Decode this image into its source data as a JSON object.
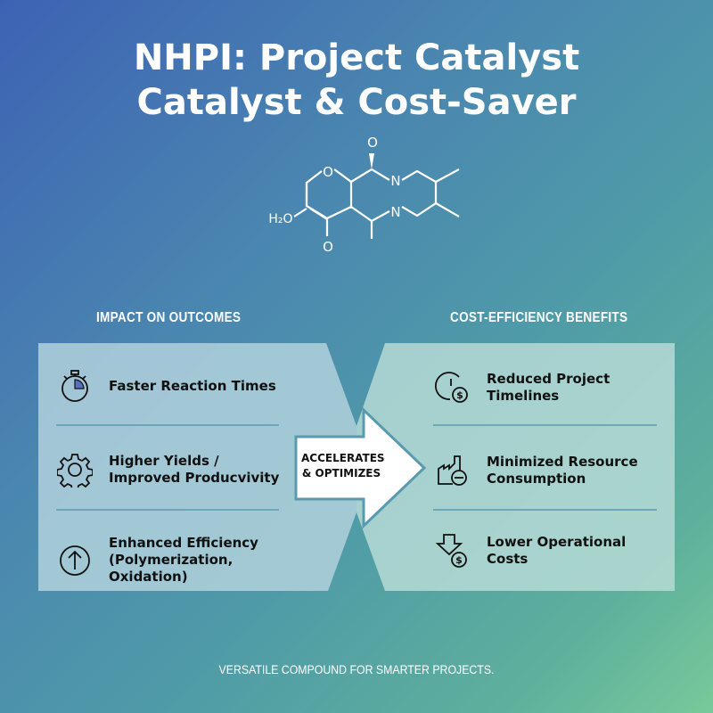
{
  "title": {
    "line1": "NHPI: Project Catalyst",
    "line2": "Catalyst & Cost-Saver"
  },
  "molecule": {
    "labels": {
      "o_top": "O",
      "o_ring": "O",
      "n1": "N",
      "n2": "N",
      "h2o": "H₂O",
      "o_bottom": "O"
    }
  },
  "left": {
    "heading": "IMPACT ON OUTCOMES",
    "items": [
      {
        "icon": "stopwatch-icon",
        "text": "Faster Reaction Times"
      },
      {
        "icon": "gear-icon",
        "text": "Higher Yields / Improved Producvivity"
      },
      {
        "icon": "arrow-up-circle-icon",
        "text": "Enhanced Efficiency (Polymerization, Oxidation)"
      }
    ]
  },
  "arrow": {
    "line1": "ACCELERATES",
    "line2": "& OPTIMIZES"
  },
  "right": {
    "heading": "COST-EFFICIENCY BENEFITS",
    "items": [
      {
        "icon": "clock-dollar-icon",
        "text": "Reduced Project Timelines"
      },
      {
        "icon": "factory-minus-icon",
        "text": "Minimized Resource Consumption"
      },
      {
        "icon": "down-arrow-dollar-icon",
        "text": "Lower Operational Costs"
      }
    ]
  },
  "footer": "VERSATILE COMPOUND FOR SMARTER PROJECTS.",
  "colors": {
    "panel": "#b4d4dc",
    "divider": "#5a9ab0",
    "arrow_border": "#5a9ab0"
  }
}
